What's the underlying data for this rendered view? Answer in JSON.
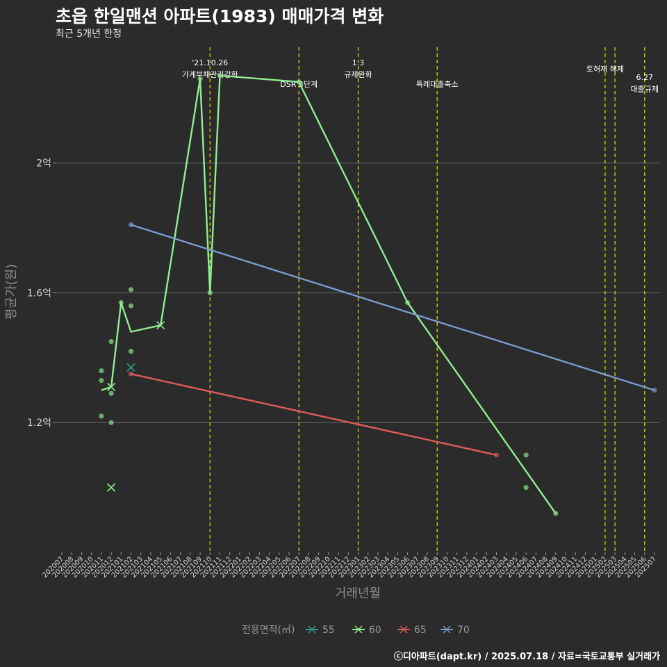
{
  "title": "초읍 한일맨션 아파트(1983) 매매가격 변화",
  "subtitle": "최근 5개년 한정",
  "credit": "ⓒ디아파트(dapt.kr) / 2025.07.18 / 자료=국토교통부 실거래가",
  "chart_data": {
    "type": "line",
    "title": "초읍 한일맨션 아파트(1983) 매매가격 변화",
    "subtitle": "최근 5개년 한정",
    "xlabel": "거래년월",
    "ylabel": "평균가(원)",
    "x_range": [
      "202007",
      "202507"
    ],
    "ylim": [
      0.8,
      2.37
    ],
    "y_ticks": [
      {
        "value": 1.2,
        "label": "1.2억"
      },
      {
        "value": 1.6,
        "label": "1.6억"
      },
      {
        "value": 2.0,
        "label": "2억"
      }
    ],
    "x_tick_labels": [
      "202007",
      "202008",
      "202009",
      "202010",
      "202011",
      "202012",
      "202101",
      "202102",
      "202103",
      "202104",
      "202105",
      "202106",
      "202107",
      "202108",
      "202109",
      "202110",
      "202111",
      "202112",
      "202201",
      "202202",
      "202203",
      "202204",
      "202205",
      "202206",
      "202207",
      "202208",
      "202209",
      "202210",
      "202211",
      "202212",
      "202301",
      "202302",
      "202303",
      "202304",
      "202305",
      "202306",
      "202307",
      "202308",
      "202309",
      "202310",
      "202311",
      "202312",
      "202401",
      "202402",
      "202403",
      "202404",
      "202405",
      "202406",
      "202407",
      "202408",
      "202409",
      "202410",
      "202411",
      "202412",
      "202501",
      "202502",
      "202503",
      "202504",
      "202505",
      "202506",
      "202507"
    ],
    "legend_title": "전용면적(㎡)",
    "series": [
      {
        "name": "55",
        "color": "#2a9d8f",
        "line": [],
        "points": [
          {
            "x": "202102",
            "y": 1.37,
            "marker": "x"
          }
        ]
      },
      {
        "name": "60",
        "color": "#90ee90",
        "line": [
          {
            "x": "202011",
            "y": 1.3
          },
          {
            "x": "202012",
            "y": 1.31
          },
          {
            "x": "202101",
            "y": 1.57
          },
          {
            "x": "202102",
            "y": 1.48
          },
          {
            "x": "202105",
            "y": 1.5
          },
          {
            "x": "202109",
            "y": 2.26
          },
          {
            "x": "202110",
            "y": 1.6
          },
          {
            "x": "202111",
            "y": 2.27
          },
          {
            "x": "202207",
            "y": 2.25
          },
          {
            "x": "202306",
            "y": 1.57
          },
          {
            "x": "202406",
            "y": 1.05
          },
          {
            "x": "202409",
            "y": 0.92
          }
        ],
        "points": [
          {
            "x": "202011",
            "y": 1.22,
            "marker": "dot"
          },
          {
            "x": "202011",
            "y": 1.33,
            "marker": "dot"
          },
          {
            "x": "202011",
            "y": 1.36,
            "marker": "dot"
          },
          {
            "x": "202012",
            "y": 1.2,
            "marker": "dot"
          },
          {
            "x": "202012",
            "y": 1.29,
            "marker": "dot"
          },
          {
            "x": "202012",
            "y": 1.31,
            "marker": "x"
          },
          {
            "x": "202012",
            "y": 1.45,
            "marker": "dot"
          },
          {
            "x": "202012",
            "y": 1.0,
            "marker": "x"
          },
          {
            "x": "202101",
            "y": 1.57,
            "marker": "dot"
          },
          {
            "x": "202102",
            "y": 1.42,
            "marker": "dot"
          },
          {
            "x": "202102",
            "y": 1.56,
            "marker": "dot"
          },
          {
            "x": "202102",
            "y": 1.61,
            "marker": "dot"
          },
          {
            "x": "202105",
            "y": 1.5,
            "marker": "x"
          },
          {
            "x": "202109",
            "y": 2.26,
            "marker": "dot"
          },
          {
            "x": "202110",
            "y": 1.6,
            "marker": "dot"
          },
          {
            "x": "202111",
            "y": 2.27,
            "marker": "dot"
          },
          {
            "x": "202207",
            "y": 2.25,
            "marker": "dot"
          },
          {
            "x": "202306",
            "y": 1.57,
            "marker": "dot"
          },
          {
            "x": "202406",
            "y": 1.1,
            "marker": "dot"
          },
          {
            "x": "202406",
            "y": 1.0,
            "marker": "dot"
          },
          {
            "x": "202409",
            "y": 0.92,
            "marker": "dot"
          }
        ]
      },
      {
        "name": "65",
        "color": "#e05a5a",
        "line": [
          {
            "x": "202102",
            "y": 1.35
          },
          {
            "x": "202403",
            "y": 1.1
          }
        ],
        "points": [
          {
            "x": "202102",
            "y": 1.35,
            "marker": "dot"
          },
          {
            "x": "202403",
            "y": 1.1,
            "marker": "dot"
          }
        ]
      },
      {
        "name": "70",
        "color": "#7b9ccf",
        "line": [
          {
            "x": "202102",
            "y": 1.81
          },
          {
            "x": "202507",
            "y": 1.3
          }
        ],
        "points": [
          {
            "x": "202102",
            "y": 1.81,
            "marker": "dot"
          },
          {
            "x": "202507",
            "y": 1.3,
            "marker": "dot"
          }
        ]
      }
    ],
    "events": [
      {
        "x": "202110",
        "lines": [
          "'21.10.26",
          "가계부채관리강화"
        ]
      },
      {
        "x": "202207",
        "lines": [
          "DSR 3단계"
        ]
      },
      {
        "x": "202301",
        "lines": [
          "1.3",
          "규제완화"
        ]
      },
      {
        "x": "202309",
        "lines": [
          "특례대출축소"
        ]
      },
      {
        "x": "202502",
        "lines": [
          "토허제 해제"
        ]
      },
      {
        "x": "202503",
        "lines": []
      },
      {
        "x": "202506",
        "lines": [
          "6.27",
          "대출규제"
        ]
      }
    ]
  }
}
